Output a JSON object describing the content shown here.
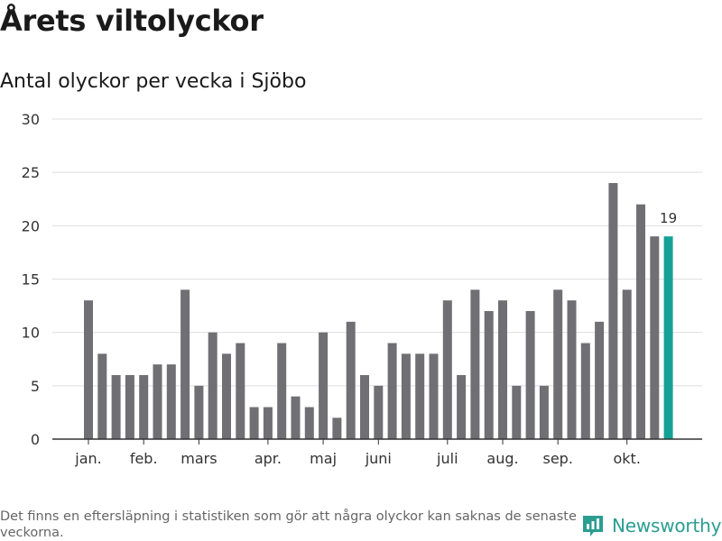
{
  "header": {
    "title": "Årets viltolyckor",
    "subtitle": "Antal olyckor per vecka i Sjöbo"
  },
  "footer": {
    "note": "Det finns en eftersläpning i statistiken som gör att några olyckor kan saknas de senaste veckorna.",
    "brand": "Newsworthy",
    "brand_icon": "bar-chart-logo-icon"
  },
  "colors": {
    "bar": "#706f74",
    "highlight": "#15a196",
    "grid": "#dedede",
    "axis": "#333333",
    "brand": "#2b9d91"
  },
  "chart_data": {
    "type": "bar",
    "title": "Antal olyckor per vecka i Sjöbo",
    "xlabel": "",
    "ylabel": "",
    "ylim": [
      0,
      30
    ],
    "yticks": [
      0,
      5,
      10,
      15,
      20,
      25,
      30
    ],
    "grid": true,
    "week_labels": [
      {
        "label": "jan.",
        "week": 1
      },
      {
        "label": "feb.",
        "week": 5
      },
      {
        "label": "mars",
        "week": 9
      },
      {
        "label": "apr.",
        "week": 14
      },
      {
        "label": "maj",
        "week": 18
      },
      {
        "label": "juni",
        "week": 22
      },
      {
        "label": "juli",
        "week": 27
      },
      {
        "label": "aug.",
        "week": 31
      },
      {
        "label": "sep.",
        "week": 35
      },
      {
        "label": "okt.",
        "week": 40
      }
    ],
    "weeks": [
      1,
      2,
      3,
      4,
      5,
      6,
      7,
      8,
      9,
      10,
      11,
      12,
      13,
      14,
      15,
      16,
      17,
      18,
      19,
      20,
      21,
      22,
      23,
      24,
      25,
      26,
      27,
      28,
      29,
      30,
      31,
      32,
      33,
      34,
      35,
      36,
      37,
      38,
      39,
      40,
      41,
      42,
      43
    ],
    "values": [
      13,
      8,
      6,
      6,
      6,
      7,
      7,
      14,
      5,
      10,
      8,
      9,
      3,
      3,
      9,
      4,
      3,
      10,
      2,
      11,
      6,
      5,
      9,
      8,
      8,
      8,
      13,
      6,
      14,
      12,
      13,
      5,
      12,
      5,
      14,
      13,
      9,
      11,
      24,
      14,
      22,
      19,
      19
    ],
    "highlight_index": 42,
    "highlight_label": "19"
  }
}
